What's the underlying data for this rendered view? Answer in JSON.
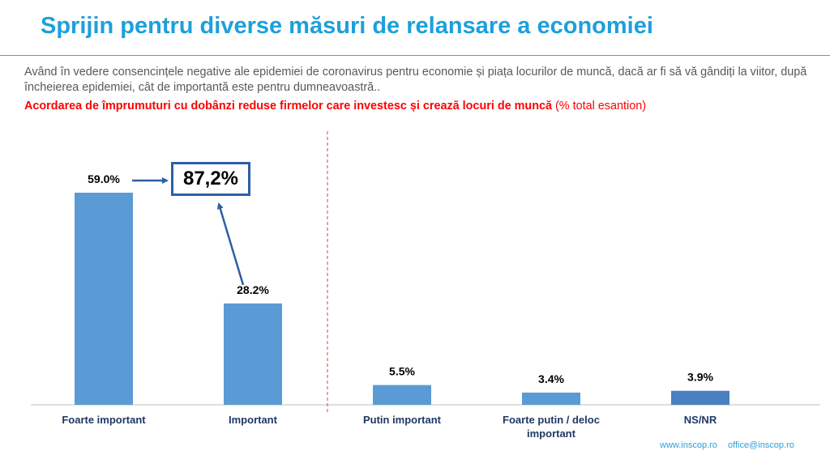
{
  "header": {
    "title": "Sprijin pentru diverse măsuri de relansare a economiei"
  },
  "question": {
    "text": "Având în vedere consencințele negative ale epidemiei de coronavirus pentru economie și piața locurilor de muncă, dacă ar fi să vă gândiți la viitor, după încheierea epidemiei, cât de importantă este pentru dumneavoastră..",
    "measure": "Acordarea de împrumuturi cu dobânzi reduse firmelor care investesc și crează locuri de muncă",
    "unit": "(% total esantion)"
  },
  "callout": {
    "total": "87,2%"
  },
  "footer": {
    "website": "www.inscop.ro",
    "email": "office@inscop.ro"
  },
  "colors": {
    "bar": "#5b9bd5",
    "bar_last": "#4a7fc1",
    "arrow": "#2e5fa3",
    "title": "#1ca0dc",
    "highlight": "#ff0000",
    "divider": "#e04040"
  },
  "chart_data": {
    "type": "bar",
    "categories": [
      "Foarte important",
      "Important",
      "Putin important",
      "Foarte putin / deloc important",
      "NS/NR"
    ],
    "category_lines": [
      [
        "Foarte important"
      ],
      [
        "Important"
      ],
      [
        "Putin important"
      ],
      [
        "Foarte putin / deloc",
        "important"
      ],
      [
        "NS/NR"
      ]
    ],
    "values": [
      59.0,
      28.2,
      5.5,
      3.4,
      3.9
    ],
    "value_labels": [
      "59.0%",
      "28.2%",
      "5.5%",
      "3.4%",
      "3.9%"
    ],
    "ylim": [
      0,
      70
    ],
    "grid": false,
    "legend": "none",
    "annotation": "87,2%"
  }
}
